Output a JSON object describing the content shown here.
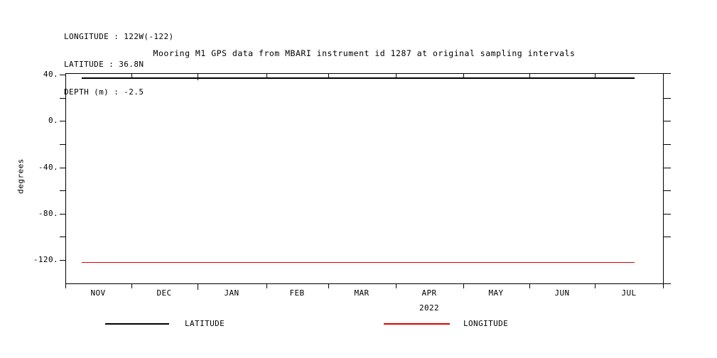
{
  "header": {
    "line1": "LONGITUDE : 122W(-122)",
    "line2": "LATITUDE : 36.8N",
    "line3": "DEPTH (m) : -2.5"
  },
  "title": "Mooring M1 GPS data from MBARI instrument id 1287 at original sampling intervals",
  "chart_data": {
    "type": "line",
    "title": "Mooring M1 GPS data from MBARI instrument id 1287 at original sampling intervals",
    "xlabel": "",
    "ylabel": "degrees",
    "x_axis": {
      "tick_months": [
        "NOV",
        "DEC",
        "JAN",
        "FEB",
        "MAR",
        "APR",
        "MAY",
        "JUN",
        "JUL"
      ],
      "year_label": "2022",
      "range_months": [
        "2021-11",
        "2022-08"
      ]
    },
    "y_axis": {
      "tick_labels": [
        "40.",
        "0.",
        "-40.",
        "-80.",
        "-120."
      ],
      "tick_values": [
        40,
        0,
        -40,
        -80,
        -120
      ],
      "minor_tick_step": 20,
      "range": [
        -140,
        41
      ]
    },
    "series": [
      {
        "name": "LATITUDE",
        "color": "#000000",
        "constant_value": 36.8
      },
      {
        "name": "LONGITUDE",
        "color": "#e00000",
        "constant_value": -122
      }
    ],
    "grid": false,
    "legend_position": "bottom"
  },
  "legend": {
    "items": [
      {
        "label": "LATITUDE",
        "color": "#000000"
      },
      {
        "label": "LONGITUDE",
        "color": "#e00000"
      }
    ]
  }
}
